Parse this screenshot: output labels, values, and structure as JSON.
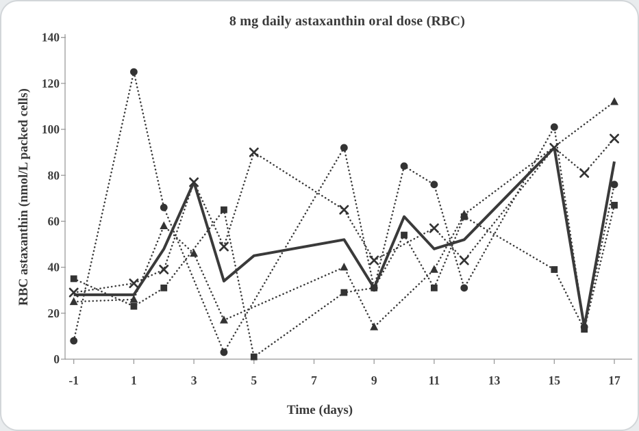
{
  "page": {
    "ink": "#3a3a3a",
    "marker_ink": "#333333",
    "axis_color": "#a9a9a9",
    "tick_color": "#9a9a9a",
    "card_bg": "#ffffff"
  },
  "chart_data": {
    "type": "line",
    "title": "8 mg daily astaxanthin oral dose (RBC)",
    "xlabel": "Time (days)",
    "ylabel": "RBC astaxanthin (nmol/L packed cells)",
    "xlim": [
      -1,
      17
    ],
    "ylim": [
      0,
      140
    ],
    "x_ticks": [
      -1,
      1,
      3,
      5,
      7,
      9,
      11,
      13,
      15,
      17
    ],
    "y_ticks": [
      0,
      20,
      40,
      60,
      80,
      100,
      120,
      140
    ],
    "grid": false,
    "legend_position": "none",
    "series": [
      {
        "name": "subject-circle",
        "marker": "circle",
        "line_style": "dotted",
        "points": [
          [
            -1,
            8
          ],
          [
            1,
            125
          ],
          [
            2,
            66
          ],
          [
            4,
            3
          ],
          [
            8,
            92
          ],
          [
            9,
            31
          ],
          [
            10,
            84
          ],
          [
            11,
            76
          ],
          [
            12,
            31
          ],
          [
            15,
            101
          ],
          [
            16,
            14
          ],
          [
            17,
            76
          ]
        ]
      },
      {
        "name": "subject-x",
        "marker": "x",
        "line_style": "dotted",
        "points": [
          [
            -1,
            29
          ],
          [
            1,
            33
          ],
          [
            2,
            39
          ],
          [
            3,
            77
          ],
          [
            4,
            49
          ],
          [
            5,
            90
          ],
          [
            8,
            65
          ],
          [
            9,
            43
          ],
          [
            11,
            57
          ],
          [
            12,
            43
          ],
          [
            15,
            92
          ],
          [
            16,
            81
          ],
          [
            17,
            96
          ]
        ]
      },
      {
        "name": "subject-triangle",
        "marker": "triangle",
        "line_style": "dotted",
        "points": [
          [
            -1,
            25
          ],
          [
            1,
            26
          ],
          [
            2,
            58
          ],
          [
            3,
            46
          ],
          [
            4,
            17
          ],
          [
            8,
            40
          ],
          [
            9,
            14
          ],
          [
            11,
            39
          ],
          [
            12,
            63
          ],
          [
            17,
            112
          ]
        ]
      },
      {
        "name": "subject-square",
        "marker": "square",
        "line_style": "dotted",
        "points": [
          [
            -1,
            35
          ],
          [
            1,
            23
          ],
          [
            2,
            31
          ],
          [
            4,
            65
          ],
          [
            5,
            1
          ],
          [
            8,
            29
          ],
          [
            9,
            31
          ],
          [
            10,
            54
          ],
          [
            11,
            31
          ],
          [
            12,
            62
          ],
          [
            15,
            39
          ],
          [
            16,
            13
          ],
          [
            17,
            67
          ]
        ]
      },
      {
        "name": "mean-line",
        "marker": "none",
        "line_style": "solid",
        "points": [
          [
            -1,
            28
          ],
          [
            1,
            28
          ],
          [
            2,
            48
          ],
          [
            3,
            77
          ],
          [
            4,
            34
          ],
          [
            5,
            45
          ],
          [
            8,
            52
          ],
          [
            9,
            31
          ],
          [
            10,
            62
          ],
          [
            11,
            48
          ],
          [
            12,
            52
          ],
          [
            15,
            92
          ],
          [
            16,
            14
          ],
          [
            17,
            86
          ]
        ]
      }
    ]
  }
}
